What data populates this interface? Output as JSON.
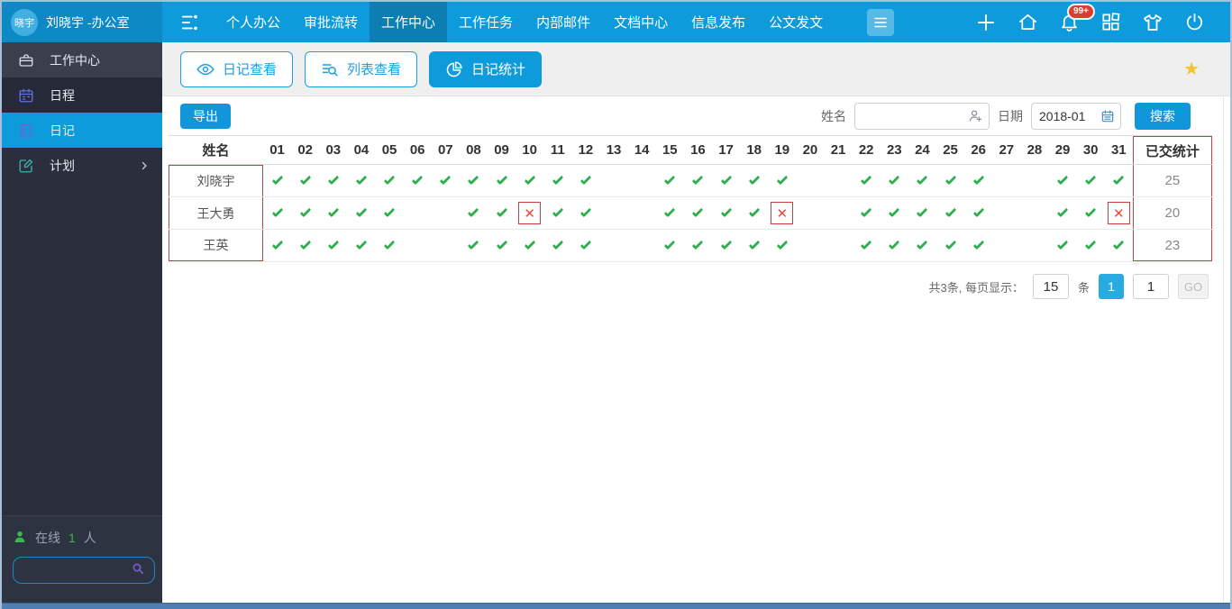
{
  "topbar": {
    "avatar": "晓宇",
    "username": "刘晓宇 -办公室",
    "nav": [
      {
        "label": "个人办公",
        "active": false
      },
      {
        "label": "审批流转",
        "active": false
      },
      {
        "label": "工作中心",
        "active": true
      },
      {
        "label": "工作任务",
        "active": false
      },
      {
        "label": "内部邮件",
        "active": false
      },
      {
        "label": "文档中心",
        "active": false
      },
      {
        "label": "信息发布",
        "active": false
      },
      {
        "label": "公文发文",
        "active": false
      }
    ],
    "notification_badge": "99+"
  },
  "sidebar": {
    "items": [
      {
        "label": "工作中心",
        "icon": "briefcase-icon",
        "active": false,
        "chevron": false
      },
      {
        "label": "日程",
        "icon": "calendar-icon",
        "active": false,
        "chevron": false
      },
      {
        "label": "日记",
        "icon": "diary-icon",
        "active": true,
        "chevron": false
      },
      {
        "label": "计划",
        "icon": "plan-icon",
        "active": false,
        "chevron": true
      }
    ],
    "online": {
      "label": "在线",
      "count": "1",
      "suffix": "人"
    }
  },
  "tabs": [
    {
      "label": "日记查看",
      "icon": "eye-icon",
      "active": false
    },
    {
      "label": "列表查看",
      "icon": "list-search-icon",
      "active": false
    },
    {
      "label": "日记统计",
      "icon": "pie-chart-icon",
      "active": true
    }
  ],
  "toolbar": {
    "export_label": "导出",
    "name_label": "姓名",
    "name_value": "",
    "date_label": "日期",
    "date_value": "2018-01",
    "search_label": "搜索"
  },
  "table": {
    "name_header": "姓名",
    "days": [
      "01",
      "02",
      "03",
      "04",
      "05",
      "06",
      "07",
      "08",
      "09",
      "10",
      "11",
      "12",
      "13",
      "14",
      "15",
      "16",
      "17",
      "18",
      "19",
      "20",
      "21",
      "22",
      "23",
      "24",
      "25",
      "26",
      "27",
      "28",
      "29",
      "30",
      "31"
    ],
    "stat_header": "已交统计",
    "rows": [
      {
        "name": "刘晓宇",
        "stat": "25",
        "marks": [
          "c",
          "c",
          "c",
          "c",
          "c",
          "c",
          "c",
          "c",
          "c",
          "c",
          "c",
          "c",
          "",
          "",
          "c",
          "c",
          "c",
          "c",
          "c",
          "",
          "",
          "c",
          "c",
          "c",
          "c",
          "c",
          "",
          "",
          "c",
          "c",
          "c"
        ]
      },
      {
        "name": "王大勇",
        "stat": "20",
        "marks": [
          "c",
          "c",
          "c",
          "c",
          "c",
          "",
          "",
          "c",
          "c",
          "x",
          "c",
          "c",
          "",
          "",
          "c",
          "c",
          "c",
          "c",
          "x",
          "",
          "",
          "c",
          "c",
          "c",
          "c",
          "c",
          "",
          "",
          "c",
          "c",
          "x"
        ]
      },
      {
        "name": "王英",
        "stat": "23",
        "marks": [
          "c",
          "c",
          "c",
          "c",
          "c",
          "",
          "",
          "c",
          "c",
          "c",
          "c",
          "c",
          "",
          "",
          "c",
          "c",
          "c",
          "c",
          "c",
          "",
          "",
          "c",
          "c",
          "c",
          "c",
          "c",
          "",
          "",
          "c",
          "c",
          "c"
        ]
      }
    ]
  },
  "pagination": {
    "summary": "共3条, 每页显示：",
    "page_size": "15",
    "unit": "条",
    "page": "1",
    "goto": "1",
    "go_label": "GO"
  },
  "colors": {
    "topbar": "#0E9BDC",
    "accent": "#1296DB",
    "check_green": "#2FAF4B",
    "cross_red": "#E74C3C",
    "annotation_red": "#C9403A",
    "online_green": "#3CB54A",
    "star_gold": "#F7C331",
    "badge_red": "#E23B30"
  }
}
